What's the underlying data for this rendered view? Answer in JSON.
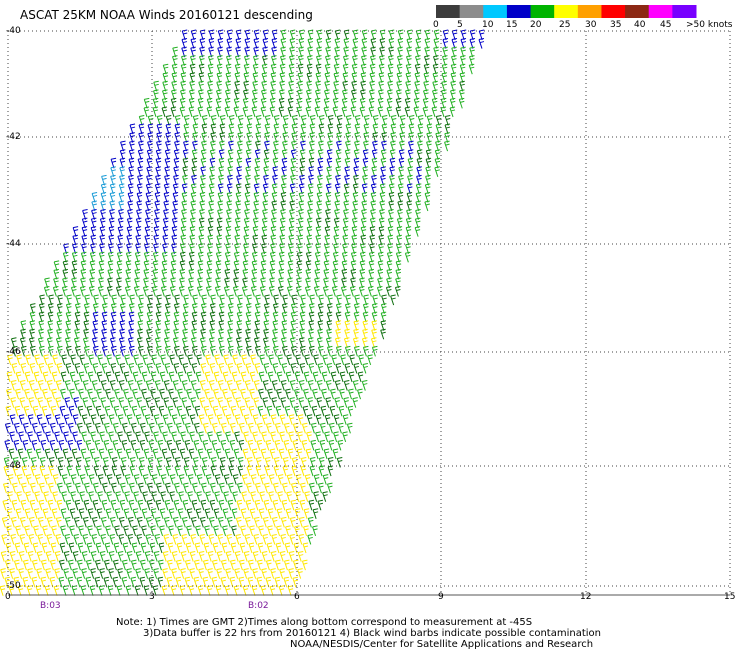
{
  "title": "ASCAT 25KM NOAA Winds 20160121 descending",
  "legend": {
    "ticks": [
      "0",
      "5",
      "10",
      "15",
      "20",
      "25",
      "30",
      "35",
      "40",
      "45",
      ">50 knots"
    ],
    "colors": [
      "#3c3c3c",
      "#8c8c8c",
      "#00c8ff",
      "#0000c8",
      "#00b400",
      "#ffff00",
      "#ffa000",
      "#ff0000",
      "#8c2814",
      "#ff00ff",
      "#7800ff"
    ]
  },
  "map": {
    "lat_labels": [
      "-40",
      "-42",
      "-44",
      "-46",
      "-48",
      "-50"
    ],
    "lon_labels": [
      "0",
      "3",
      "6",
      "9",
      "12",
      "15"
    ],
    "time_labels": [
      "B:03",
      "B:02"
    ],
    "gridlines": "dotted",
    "barb_colors": {
      "calm_blue": "#0000c8",
      "light_blue": "#1a9bd6",
      "green": "#22b022",
      "dark_green": "#0f6f0f",
      "yellow": "#ffe800"
    }
  },
  "notes": {
    "line1": "Note: 1) Times are GMT 2)Times along bottom correspond to measurement at -45S",
    "line2": "3)Data buffer is 22 hrs from 20160121 4) Black wind barbs indicate possible contamination",
    "line3": "NOAA/NESDIS/Center for Satellite Applications and Research"
  }
}
